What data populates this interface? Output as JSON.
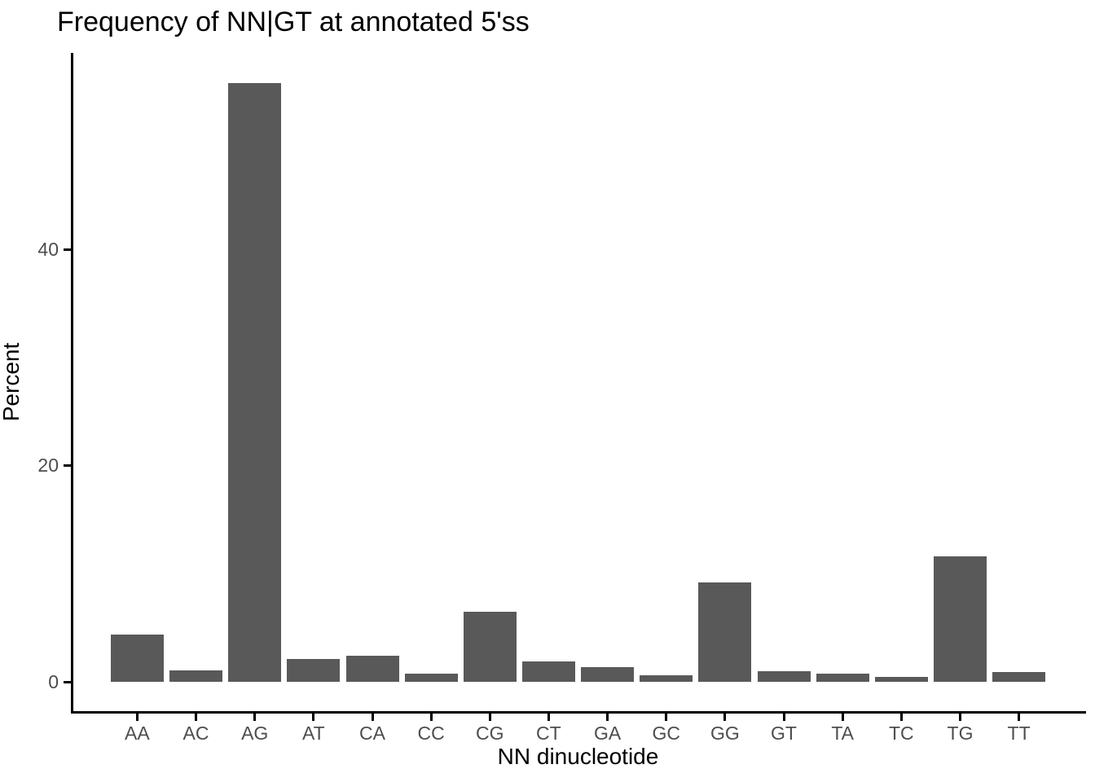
{
  "chart_data": {
    "type": "bar",
    "title": "Frequency of NN|GT at annotated 5'ss",
    "xlabel": "NN dinucleotide",
    "ylabel": "Percent",
    "categories": [
      "AA",
      "AC",
      "AG",
      "AT",
      "CA",
      "CC",
      "CG",
      "CT",
      "GA",
      "GC",
      "GG",
      "GT",
      "TA",
      "TC",
      "TG",
      "TT"
    ],
    "values": [
      4.4,
      1.1,
      55.4,
      2.1,
      2.4,
      0.8,
      6.5,
      1.9,
      1.4,
      0.6,
      9.2,
      1.0,
      0.8,
      0.5,
      11.6,
      0.9
    ],
    "yticks": [
      0,
      20,
      40
    ],
    "ylim": [
      -2.7,
      58.2
    ],
    "grid": false,
    "legend": false,
    "colors": {
      "bar_fill": "#595959",
      "axis_line": "#000000",
      "tick_label": "#4D4D4D",
      "title_text": "#000000",
      "background": "#FFFFFF"
    }
  }
}
